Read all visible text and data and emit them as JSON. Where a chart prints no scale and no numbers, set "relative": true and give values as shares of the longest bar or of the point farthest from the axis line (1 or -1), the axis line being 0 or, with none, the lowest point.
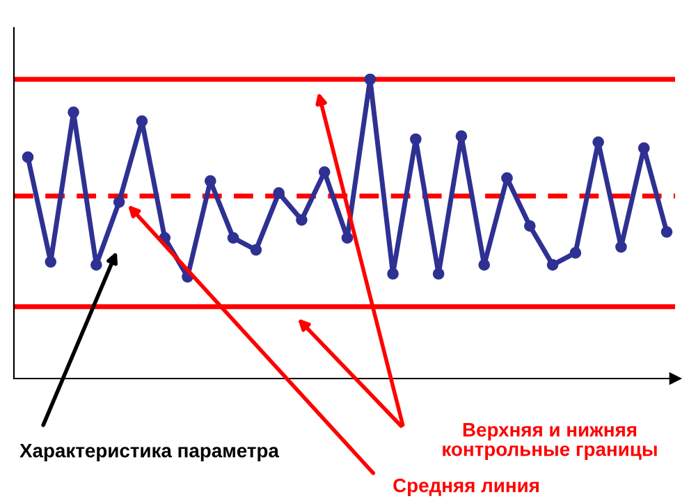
{
  "chart_data": {
    "type": "line",
    "relative": true,
    "marker": "circle",
    "line_style": "solid",
    "legend": false,
    "categories": [
      null,
      null,
      null,
      null,
      null,
      null,
      null,
      null,
      null,
      null,
      null,
      null,
      null,
      null,
      null,
      null,
      null,
      null,
      null,
      null,
      null,
      null,
      null,
      null,
      null,
      null,
      null,
      null,
      null
    ],
    "series": [
      {
        "color": "#2e3192",
        "values": [
          0.74,
          0.39,
          0.89,
          0.38,
          0.59,
          0.86,
          0.47,
          0.34,
          0.66,
          0.47,
          0.43,
          0.62,
          0.53,
          0.69,
          0.47,
          1.0,
          0.35,
          0.8,
          0.35,
          0.81,
          0.38,
          0.67,
          0.51,
          0.38,
          0.42,
          0.79,
          0.44,
          0.77,
          0.49
        ]
      }
    ],
    "ref_lines": [
      {
        "axis": "y",
        "value": 1.0,
        "color": "#ff0000",
        "line_style": "solid"
      },
      {
        "axis": "y",
        "value": 0.61,
        "color": "#ff0000",
        "line_style": "dashed"
      },
      {
        "axis": "y",
        "value": 0.24,
        "color": "#ff0000",
        "line_style": "solid"
      }
    ],
    "annotations": [
      "Характеристика параметра",
      "Верхняя и нижняя\nконтрольные границы",
      "Средняя линия"
    ]
  }
}
